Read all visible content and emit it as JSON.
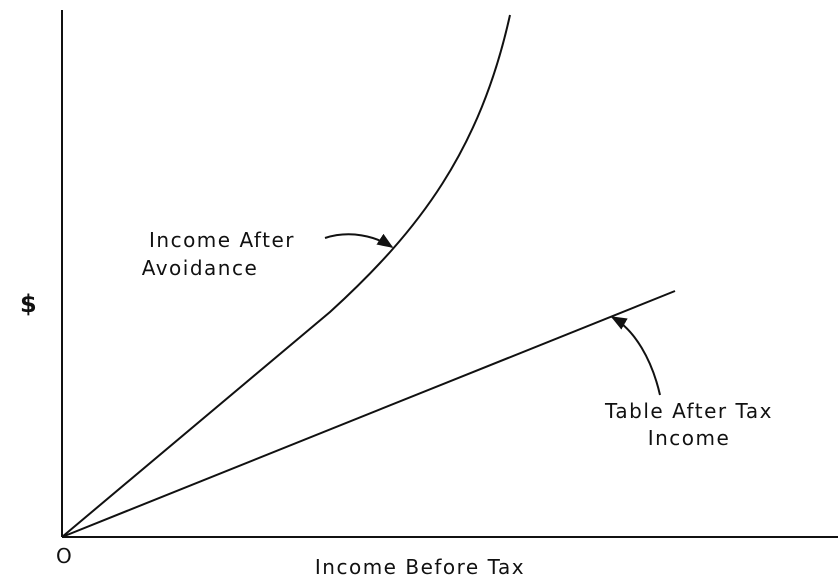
{
  "y_axis_label": "$",
  "origin_label": "O",
  "x_axis_label": "Income Before Tax",
  "curves": [
    {
      "label_lines": [
        "Income After",
        "Avoidance"
      ]
    },
    {
      "label_lines": [
        "Table After Tax",
        "Income"
      ]
    }
  ]
}
